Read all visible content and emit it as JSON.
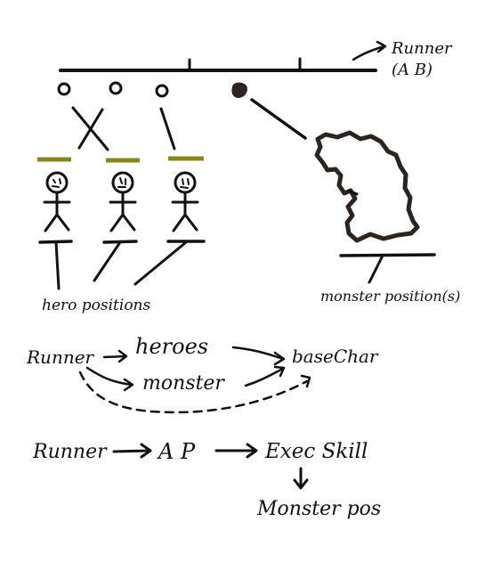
{
  "colors": {
    "ink": "#111111",
    "brown": "#2b2420",
    "olive": "#8a8520",
    "white": "#ffffff"
  },
  "top": {
    "runner_label": "Runner",
    "runner_sub": "(A B)"
  },
  "labels": {
    "hero_positions": "hero positions",
    "monster_positions": "monster position(s)"
  },
  "flow1": {
    "runner": "Runner",
    "heroes": "heroes",
    "monster": "monster",
    "basechar": "baseChar"
  },
  "flow2": {
    "runner": "Runner",
    "ap": "A P",
    "exec": "Exec Skill",
    "monster_pos": "Monster pos"
  }
}
